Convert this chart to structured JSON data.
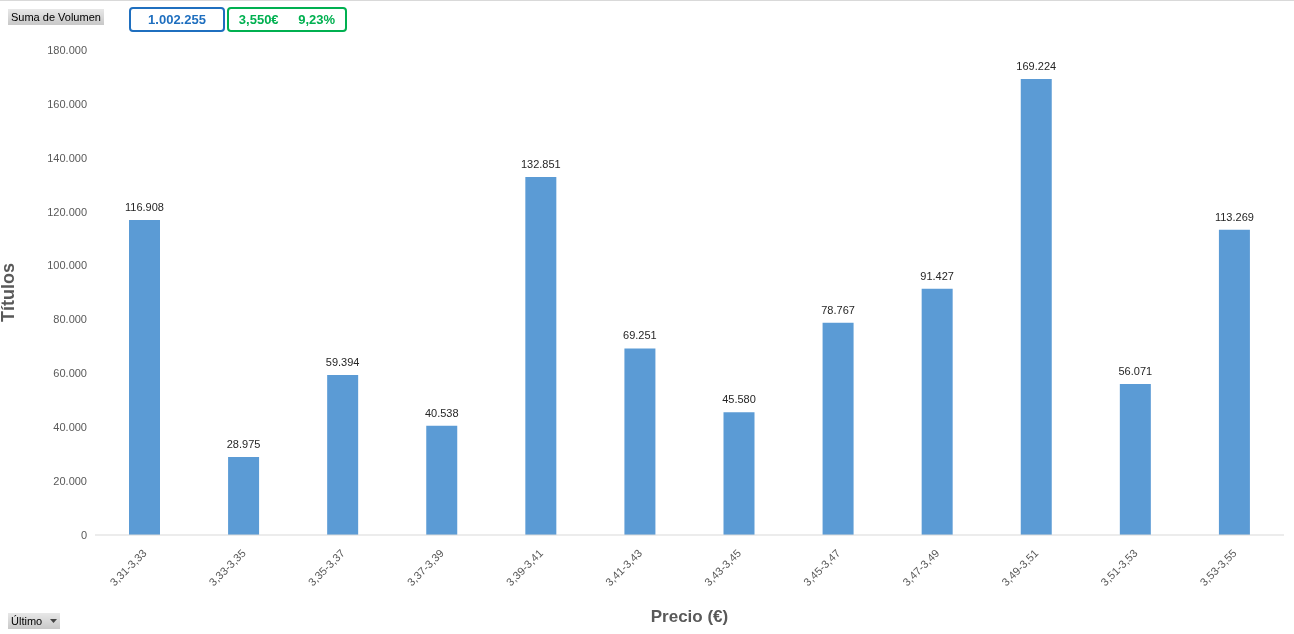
{
  "chart_data": {
    "type": "bar",
    "xlabel": "Precio (€)",
    "ylabel": "Títulos",
    "categories": [
      "3,31-3,33",
      "3,33-3,35",
      "3,35-3,37",
      "3,37-3,39",
      "3,39-3,41",
      "3,41-3,43",
      "3,43-3,45",
      "3,45-3,47",
      "3,47-3,49",
      "3,49-3,51",
      "3,51-3,53",
      "3,53-3,55"
    ],
    "values": [
      116908,
      28975,
      59394,
      40538,
      132851,
      69251,
      45580,
      78767,
      91427,
      169224,
      56071,
      113269
    ],
    "value_labels": [
      "116.908",
      "28.975",
      "59.394",
      "40.538",
      "132.851",
      "69.251",
      "45.580",
      "78.767",
      "91.427",
      "169.224",
      "56.071",
      "113.269"
    ],
    "color": "#5b9bd5",
    "ylim": [
      0,
      180000
    ],
    "yticks": [
      0,
      {
        "value": 20000,
        "label": "20.000"
      },
      {
        "value": 40000,
        "label": "40.000"
      },
      {
        "value": 60000,
        "label": "60.000"
      },
      {
        "value": 80000,
        "label": "80.000"
      },
      {
        "value": 100000,
        "label": "100.000"
      },
      {
        "value": 120000,
        "label": "120.000"
      },
      {
        "value": 140000,
        "label": "140.000"
      },
      {
        "value": 160000,
        "label": "160.000"
      },
      {
        "value": 180000,
        "label": "180.000"
      }
    ],
    "grid": false,
    "legend": false,
    "annotations": [
      "Suma de Volumen",
      "1.002.255",
      "3,550€",
      "9,23%",
      "Último"
    ]
  }
}
